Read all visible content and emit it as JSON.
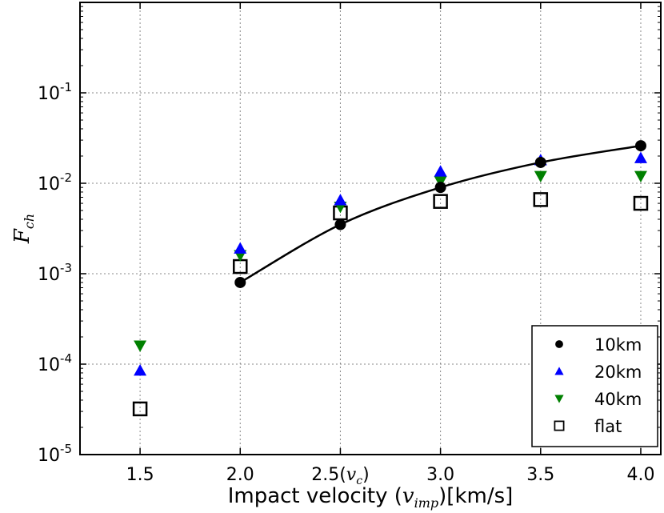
{
  "chart_data": {
    "type": "scatter",
    "xlabel_prefix": "Impact velocity (",
    "xlabel_var": "v",
    "xlabel_sub": "imp",
    "xlabel_suffix": ")[km/s]",
    "ylabel_var": "F",
    "ylabel_sub": "ch",
    "xlim": [
      1.2,
      4.1
    ],
    "ylim_log10": [
      -5,
      0
    ],
    "grid": true,
    "x_ticks": [
      {
        "value": 1.5,
        "label": "1.5"
      },
      {
        "value": 2.0,
        "label": "2.0"
      },
      {
        "value": 2.5,
        "label": "2.5(",
        "var": "v",
        "sub": "c",
        "close": ")"
      },
      {
        "value": 3.0,
        "label": "3.0"
      },
      {
        "value": 3.5,
        "label": "3.5"
      },
      {
        "value": 4.0,
        "label": "4.0"
      }
    ],
    "y_ticks": [
      {
        "exp": -5,
        "base": "10",
        "sup": "-5"
      },
      {
        "exp": -4,
        "base": "10",
        "sup": "-4"
      },
      {
        "exp": -3,
        "base": "10",
        "sup": "-3"
      },
      {
        "exp": -2,
        "base": "10",
        "sup": "-2"
      },
      {
        "exp": -1,
        "base": "10",
        "sup": "-1"
      }
    ],
    "series": [
      {
        "name": "10km",
        "marker": "circle",
        "color": "#000000",
        "line": true,
        "points": [
          [
            2.0,
            0.0008
          ],
          [
            2.5,
            0.0035
          ],
          [
            3.0,
            0.009
          ],
          [
            3.5,
            0.017
          ],
          [
            4.0,
            0.026
          ]
        ]
      },
      {
        "name": "20km",
        "marker": "triangle-up",
        "color": "#0000ff",
        "line": false,
        "points": [
          [
            1.5,
            8.5e-05
          ],
          [
            2.0,
            0.0019
          ],
          [
            2.5,
            0.0065
          ],
          [
            3.0,
            0.0135
          ],
          [
            3.5,
            0.018
          ],
          [
            4.0,
            0.019
          ]
        ]
      },
      {
        "name": "40km",
        "marker": "triangle-down",
        "color": "#008000",
        "line": false,
        "points": [
          [
            1.5,
            0.00016
          ],
          [
            2.0,
            0.0016
          ],
          [
            2.5,
            0.0055
          ],
          [
            3.0,
            0.0105
          ],
          [
            3.5,
            0.012
          ],
          [
            4.0,
            0.012
          ]
        ]
      },
      {
        "name": "flat",
        "marker": "square",
        "color": "#000000",
        "line": false,
        "points": [
          [
            1.5,
            3.2e-05
          ],
          [
            2.0,
            0.0012
          ],
          [
            2.5,
            0.0047
          ],
          [
            3.0,
            0.0063
          ],
          [
            3.5,
            0.0066
          ],
          [
            4.0,
            0.006
          ]
        ]
      }
    ],
    "legend": {
      "position": "bottom-right",
      "entries": [
        "10km",
        "20km",
        "40km",
        "flat"
      ]
    }
  }
}
